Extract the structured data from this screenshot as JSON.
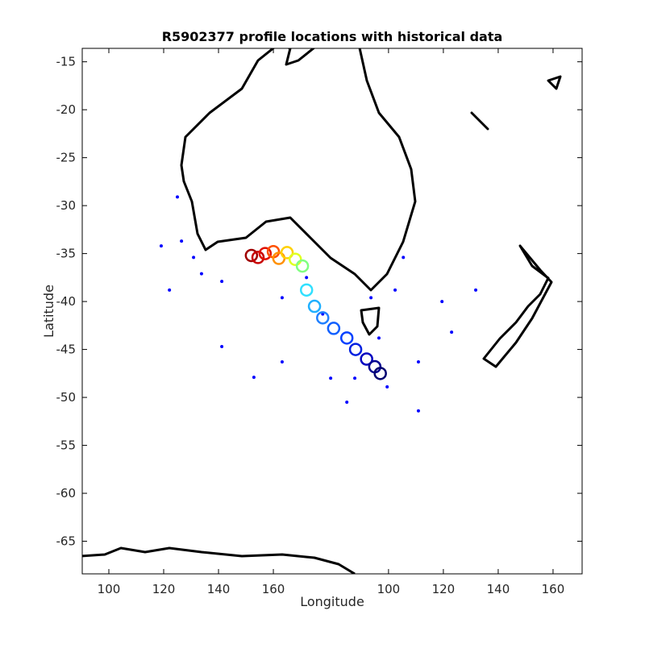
{
  "chart_data": {
    "type": "scatter",
    "title": "R5902377 profile locations with historical data",
    "xlabel": "Longitude",
    "ylabel": "Latitude",
    "xlim": [
      90.3,
      272.6
    ],
    "ylim": [
      -68.4,
      -13.6
    ],
    "xticks": [
      100,
      120,
      140,
      160,
      {
        "value": 202,
        "label": "100"
      },
      {
        "value": 222,
        "label": "120"
      },
      {
        "value": 242,
        "label": "140"
      },
      {
        "value": 262,
        "label": "160"
      }
    ],
    "yticks": [
      -15,
      -20,
      -25,
      -30,
      -35,
      -40,
      -45,
      -50,
      -55,
      -60,
      -65
    ],
    "historical": {
      "color": "#0000ff",
      "x": [
        125,
        119.1,
        130.9,
        141.2,
        141.2,
        163.2,
        152.9,
        163.2,
        180.9,
        186.8,
        198.5,
        207.4,
        212.9,
        212.9,
        225,
        233.8,
        221.5,
        201.5,
        189.7,
        122.1,
        178,
        172.1,
        204.4,
        195.6,
        126.5,
        133.8
      ],
      "y": [
        -29.1,
        -34.2,
        -35.4,
        -37.9,
        -44.7,
        -39.6,
        -47.9,
        -46.3,
        -48,
        -50.5,
        -43.8,
        -35.4,
        -46.3,
        -51.4,
        -43.2,
        -38.8,
        -40,
        -48.9,
        -48,
        -38.8,
        -41.3,
        -37.5,
        -38.8,
        -39.6,
        -33.7,
        -37.1
      ]
    },
    "profiles": {
      "x": [
        152,
        154.4,
        157,
        160,
        162,
        165,
        168,
        170.6,
        172.1,
        175,
        178,
        182,
        186.8,
        190,
        194,
        197,
        199
      ],
      "y": [
        -35.2,
        -35.4,
        -35,
        -34.8,
        -35.5,
        -34.9,
        -35.6,
        -36.3,
        -38.8,
        -40.5,
        -41.7,
        -42.8,
        -43.8,
        -45,
        -46,
        -46.8,
        -47.5
      ],
      "colors": [
        "#a00000",
        "#c80000",
        "#e01000",
        "#ff5000",
        "#ff9000",
        "#ffd000",
        "#e0ff20",
        "#80ff80",
        "#30e0ff",
        "#20b0ff",
        "#2080ff",
        "#1060ff",
        "#0040ff",
        "#0020e0",
        "#0000c0",
        "#000090",
        "#000070"
      ]
    }
  }
}
